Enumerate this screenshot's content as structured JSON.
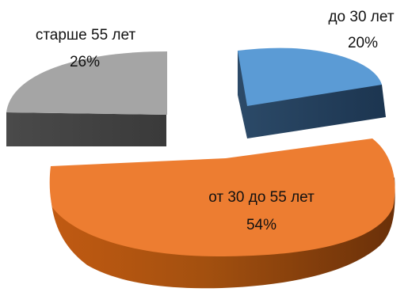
{
  "chart_data": {
    "type": "pie",
    "style": "3d-exploded",
    "title": "",
    "slices": [
      {
        "label": "до 30 лет",
        "value": 20,
        "display": "20%",
        "color": "#5B9BD5"
      },
      {
        "label": "от 30 до 55 лет",
        "value": 54,
        "display": "54%",
        "color": "#ED7D31"
      },
      {
        "label": "старше 55 лет",
        "value": 26,
        "display": "26%",
        "color": "#A5A5A5"
      }
    ],
    "legend": "none",
    "data_labels": "category-and-percent"
  }
}
